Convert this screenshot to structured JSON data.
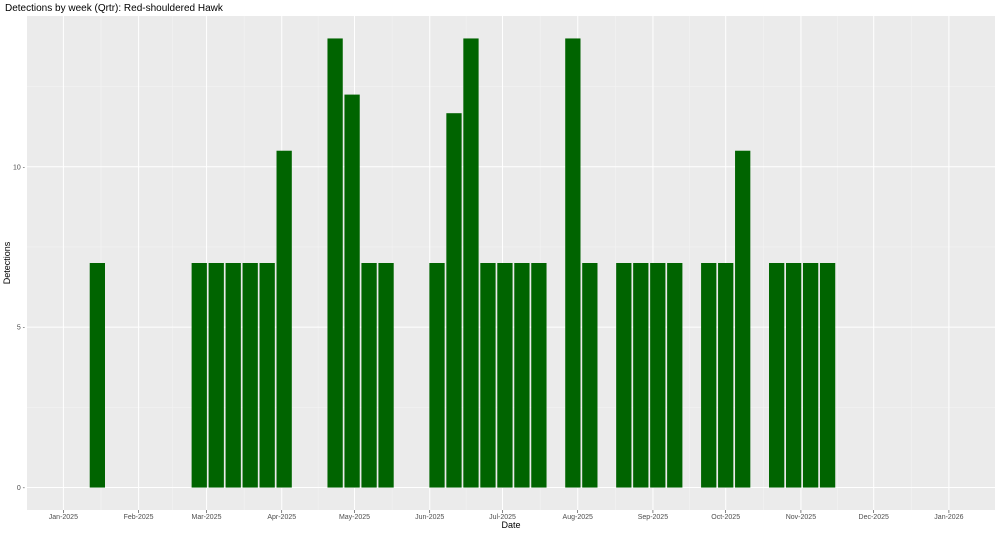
{
  "chart_data": {
    "type": "bar",
    "title": "Detections by week (Qrtr): Red-shouldered Hawk",
    "xlabel": "Date",
    "ylabel": "Detections",
    "xlim": [
      "2024-12-17",
      "2026-01-20"
    ],
    "ylim": [
      -0.7,
      14.7
    ],
    "x_ticks": [
      "2025-01-01",
      "2025-02-01",
      "2025-03-01",
      "2025-04-01",
      "2025-05-01",
      "2025-06-01",
      "2025-07-01",
      "2025-08-01",
      "2025-09-01",
      "2025-10-01",
      "2025-11-01",
      "2025-12-01",
      "2026-01-01"
    ],
    "x_tick_labels": [
      "Jan-2025",
      "Feb-2025",
      "Mar-2025",
      "Apr-2025",
      "May-2025",
      "Jun-2025",
      "Jul-2025",
      "Aug-2025",
      "Sep-2025",
      "Oct-2025",
      "Nov-2025",
      "Dec-2025",
      "Jan-2026"
    ],
    "y_ticks": [
      0,
      5,
      10
    ],
    "y_tick_labels": [
      "0 -",
      "5 -",
      "10 -"
    ],
    "grid": true,
    "legend": "none",
    "bar_color": "#006400",
    "panel_background": "#ebebeb",
    "series": [
      {
        "x": [
          "2025-01-15",
          "2025-02-26",
          "2025-03-05",
          "2025-03-12",
          "2025-03-19",
          "2025-03-26",
          "2025-04-02",
          "2025-04-23",
          "2025-04-30",
          "2025-05-07",
          "2025-05-14",
          "2025-06-04",
          "2025-06-11",
          "2025-06-18",
          "2025-06-25",
          "2025-07-02",
          "2025-07-09",
          "2025-07-16",
          "2025-07-30",
          "2025-08-06",
          "2025-08-20",
          "2025-08-27",
          "2025-09-03",
          "2025-09-10",
          "2025-09-24",
          "2025-10-01",
          "2025-10-08",
          "2025-10-22",
          "2025-10-29",
          "2025-11-05",
          "2025-11-12"
        ],
        "values": [
          7,
          7,
          7,
          7,
          7,
          7,
          10.5,
          14,
          12.25,
          7,
          7,
          7,
          11.67,
          14,
          7,
          7,
          7,
          7,
          14,
          7,
          7,
          7,
          7,
          7,
          7,
          7,
          10.5,
          7,
          7,
          7,
          7
        ]
      }
    ]
  }
}
